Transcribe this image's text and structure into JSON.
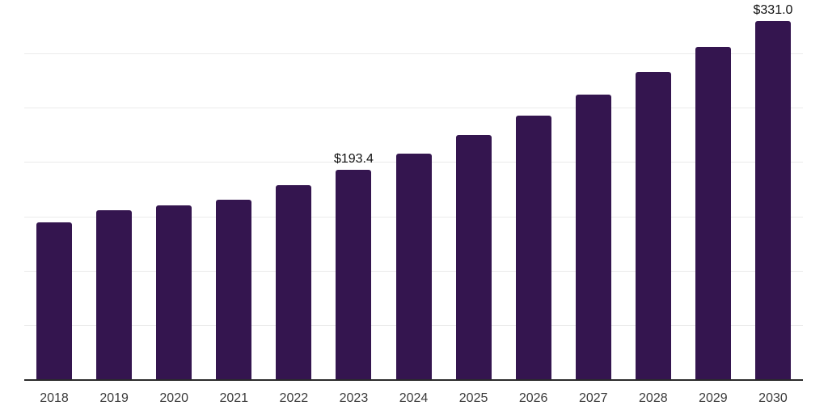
{
  "chart_data": {
    "type": "bar",
    "title": "",
    "xlabel": "",
    "ylabel": "",
    "categories": [
      "2018",
      "2019",
      "2020",
      "2021",
      "2022",
      "2023",
      "2024",
      "2025",
      "2026",
      "2027",
      "2028",
      "2029",
      "2030"
    ],
    "values": [
      145.3,
      156.6,
      160.8,
      166.0,
      179.4,
      193.4,
      208.8,
      225.5,
      243.5,
      262.9,
      283.9,
      306.5,
      331.0
    ],
    "point_labels": {
      "2023": "$193.4",
      "2030": "$331.0"
    },
    "ylim": [
      0,
      350
    ],
    "gridline_step": 50,
    "grid": true,
    "legend": false,
    "y_axis_tick_labels_visible": false,
    "style": {
      "bar_color": "#34154f",
      "axis_color": "#2b2b2b",
      "grid_color": "#ebebeb",
      "data_label_color": "#111111",
      "tick_color": "#3b3b3b",
      "background": "#ffffff"
    }
  }
}
